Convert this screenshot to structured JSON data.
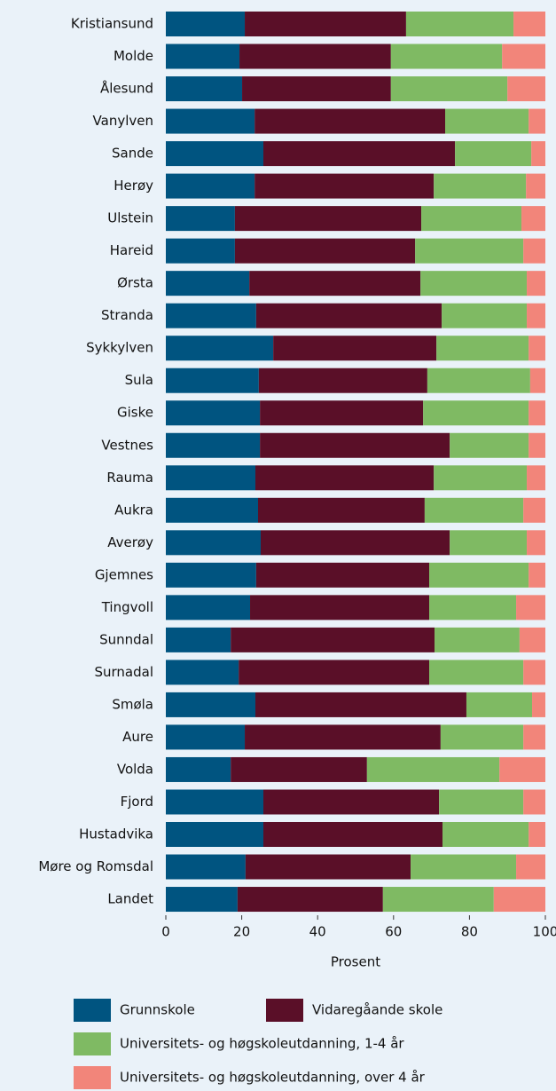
{
  "chart_data": {
    "type": "stacked_barh",
    "x_label": "Prosent",
    "categories": [
      "Kristiansund",
      "Molde",
      "Ålesund",
      "Vanylven",
      "Sande",
      "Herøy",
      "Ulstein",
      "Hareid",
      "Ørsta",
      "Stranda",
      "Sykkylven",
      "Sula",
      "Giske",
      "Vestnes",
      "Rauma",
      "Aukra",
      "Averøy",
      "Gjemnes",
      "Tingvoll",
      "Sunndal",
      "Surnadal",
      "Smøla",
      "Aure",
      "Volda",
      "Fjord",
      "Hustadvika",
      "Møre og Romsdal",
      "Landet"
    ],
    "series": [
      {
        "name": "Grunnskole",
        "color": "#005480",
        "values": [
          20.8,
          19.4,
          20.1,
          23.4,
          25.7,
          23.4,
          18.2,
          18.2,
          22.0,
          23.8,
          28.3,
          24.5,
          24.8,
          24.8,
          23.6,
          24.3,
          25.0,
          23.8,
          22.2,
          17.1,
          19.2,
          23.6,
          20.8,
          17.1,
          25.7,
          25.7,
          21.0,
          18.9
        ]
      },
      {
        "name": "Vidaregåande skole",
        "color": "#5a0f28",
        "values": [
          42.5,
          39.9,
          39.2,
          50.2,
          50.5,
          47.2,
          49.1,
          47.5,
          45.1,
          48.9,
          43.0,
          44.4,
          43.0,
          50.0,
          47.0,
          43.9,
          49.8,
          45.6,
          47.2,
          53.7,
          50.2,
          55.6,
          51.6,
          35.9,
          46.3,
          47.2,
          43.5,
          38.3
        ]
      },
      {
        "name": "Universitets- og høgskoleutdanning, 1-4 år",
        "color": "#7fba63",
        "values": [
          28.3,
          29.3,
          30.7,
          22.0,
          20.1,
          24.3,
          26.4,
          28.5,
          28.0,
          22.4,
          24.3,
          27.1,
          27.8,
          20.8,
          24.5,
          26.0,
          20.3,
          26.2,
          22.9,
          22.4,
          24.8,
          17.3,
          21.8,
          34.9,
          22.2,
          22.7,
          27.8,
          29.2
        ]
      },
      {
        "name": "Universitets- og høgskoleutdanning, over 4 år",
        "color": "#f2857a",
        "values": [
          8.4,
          11.4,
          10.0,
          4.4,
          3.7,
          5.1,
          6.3,
          5.8,
          4.9,
          4.9,
          4.4,
          4.0,
          4.4,
          4.4,
          4.9,
          5.8,
          4.9,
          4.4,
          7.7,
          6.8,
          5.8,
          3.5,
          5.8,
          12.1,
          5.8,
          4.4,
          7.7,
          13.6
        ]
      }
    ],
    "xlim": [
      0,
      100
    ],
    "xticks": [
      0,
      20,
      40,
      60,
      80,
      100
    ],
    "grid": false
  }
}
